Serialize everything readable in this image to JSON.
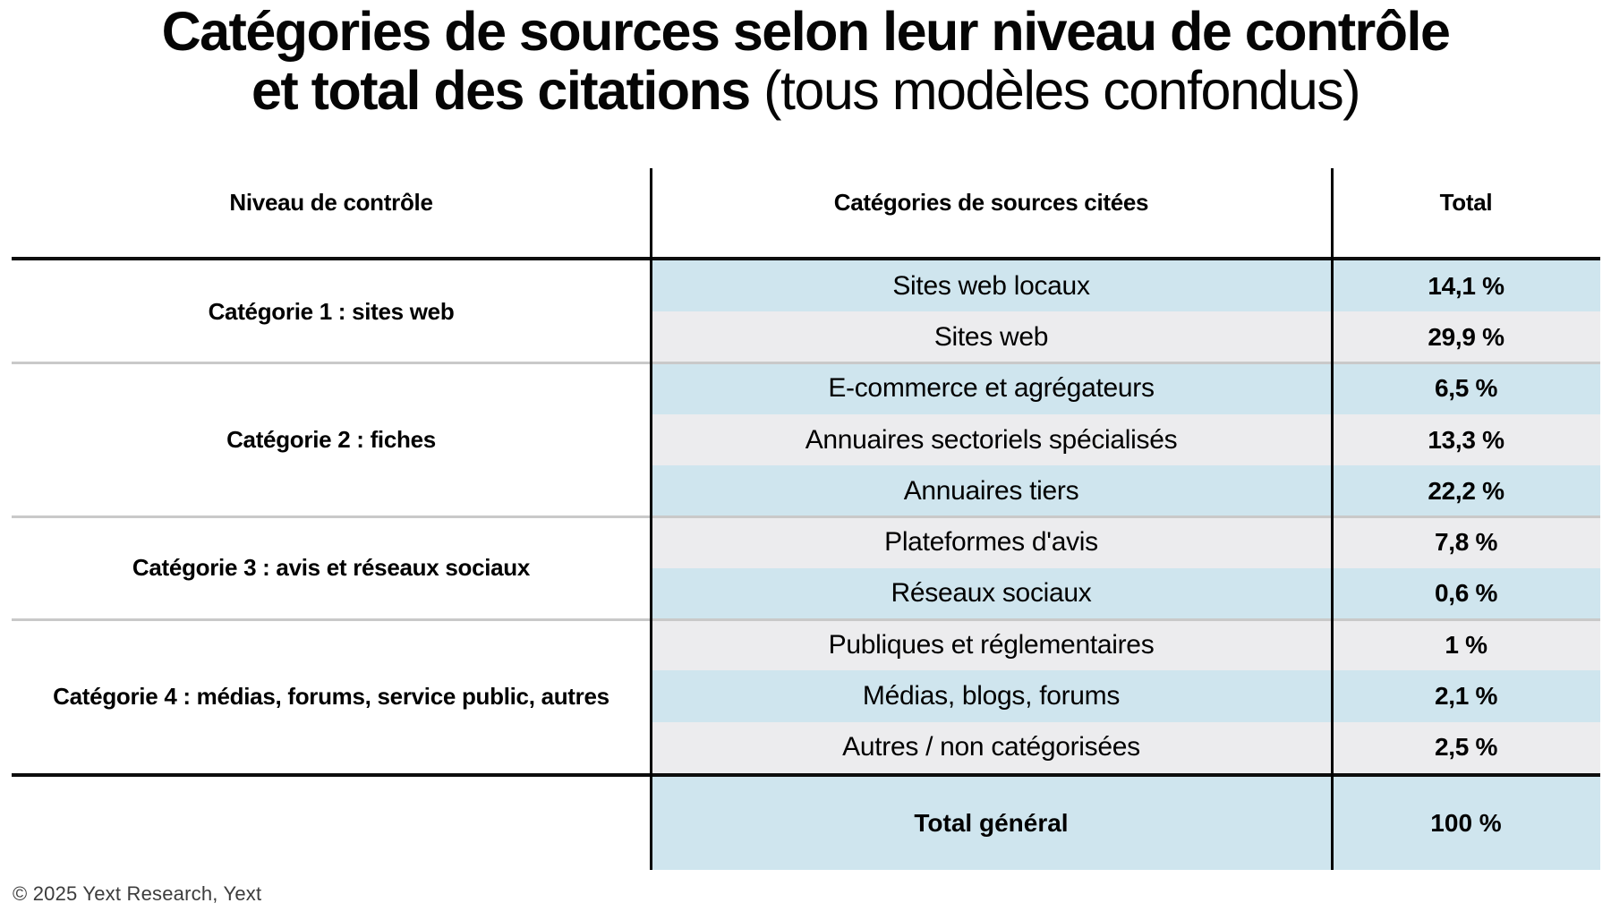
{
  "title": {
    "line1": "Catégories de sources selon leur niveau de contrôle",
    "line2_bold": "et total des citations",
    "line2_note": " (tous modèles confondus)"
  },
  "table": {
    "headers": [
      "Niveau de contrôle",
      "Catégories de sources citées",
      "Total"
    ],
    "groups": [
      {
        "label": "Catégorie 1 : sites web",
        "rows": [
          {
            "source": "Sites web locaux",
            "total": "14,1 %"
          },
          {
            "source": "Sites web",
            "total": "29,9 %"
          }
        ]
      },
      {
        "label": "Catégorie 2 : fiches",
        "rows": [
          {
            "source": "E-commerce et agrégateurs",
            "total": "6,5 %"
          },
          {
            "source": "Annuaires sectoriels spécialisés",
            "total": "13,3 %"
          },
          {
            "source": "Annuaires tiers",
            "total": "22,2 %"
          }
        ]
      },
      {
        "label": "Catégorie 3 : avis et réseaux sociaux",
        "rows": [
          {
            "source": "Plateformes d'avis",
            "total": "7,8 %"
          },
          {
            "source": "Réseaux sociaux",
            "total": "0,6 %"
          }
        ]
      },
      {
        "label": "Catégorie 4 : médias, forums, service public, autres",
        "rows": [
          {
            "source": "Publiques et réglementaires",
            "total": "1 %"
          },
          {
            "source": "Médias, blogs, forums",
            "total": "2,1 %"
          },
          {
            "source": "Autres / non catégorisées",
            "total": "2,5 %"
          }
        ]
      }
    ],
    "total_row": {
      "label": "Total général",
      "value": "100 %"
    }
  },
  "footer": "© 2025 Yext Research, Yext",
  "colors": {
    "row_blue": "#cfe5ee",
    "row_gray": "#ececee",
    "separator_gray": "#c9c9c9",
    "line_black": "#0d0d0d"
  },
  "chart_data": {
    "type": "table",
    "title": "Catégories de sources selon leur niveau de contrôle et total des citations (tous modèles confondus)",
    "columns": [
      "Niveau de contrôle",
      "Catégories de sources citées",
      "Total"
    ],
    "value_unit": "%",
    "rows": [
      [
        "Catégorie 1 : sites web",
        "Sites web locaux",
        14.1
      ],
      [
        "Catégorie 1 : sites web",
        "Sites web",
        29.9
      ],
      [
        "Catégorie 2 : fiches",
        "E-commerce et agrégateurs",
        6.5
      ],
      [
        "Catégorie 2 : fiches",
        "Annuaires sectoriels spécialisés",
        13.3
      ],
      [
        "Catégorie 2 : fiches",
        "Annuaires tiers",
        22.2
      ],
      [
        "Catégorie 3 : avis et réseaux sociaux",
        "Plateformes d'avis",
        7.8
      ],
      [
        "Catégorie 3 : avis et réseaux sociaux",
        "Réseaux sociaux",
        0.6
      ],
      [
        "Catégorie 4 : médias, forums, service public, autres",
        "Publiques et réglementaires",
        1
      ],
      [
        "Catégorie 4 : médias, forums, service public, autres",
        "Médias, blogs, forums",
        2.1
      ],
      [
        "Catégorie 4 : médias, forums, service public, autres",
        "Autres / non catégorisées",
        2.5
      ],
      [
        "",
        "Total général",
        100
      ]
    ]
  }
}
